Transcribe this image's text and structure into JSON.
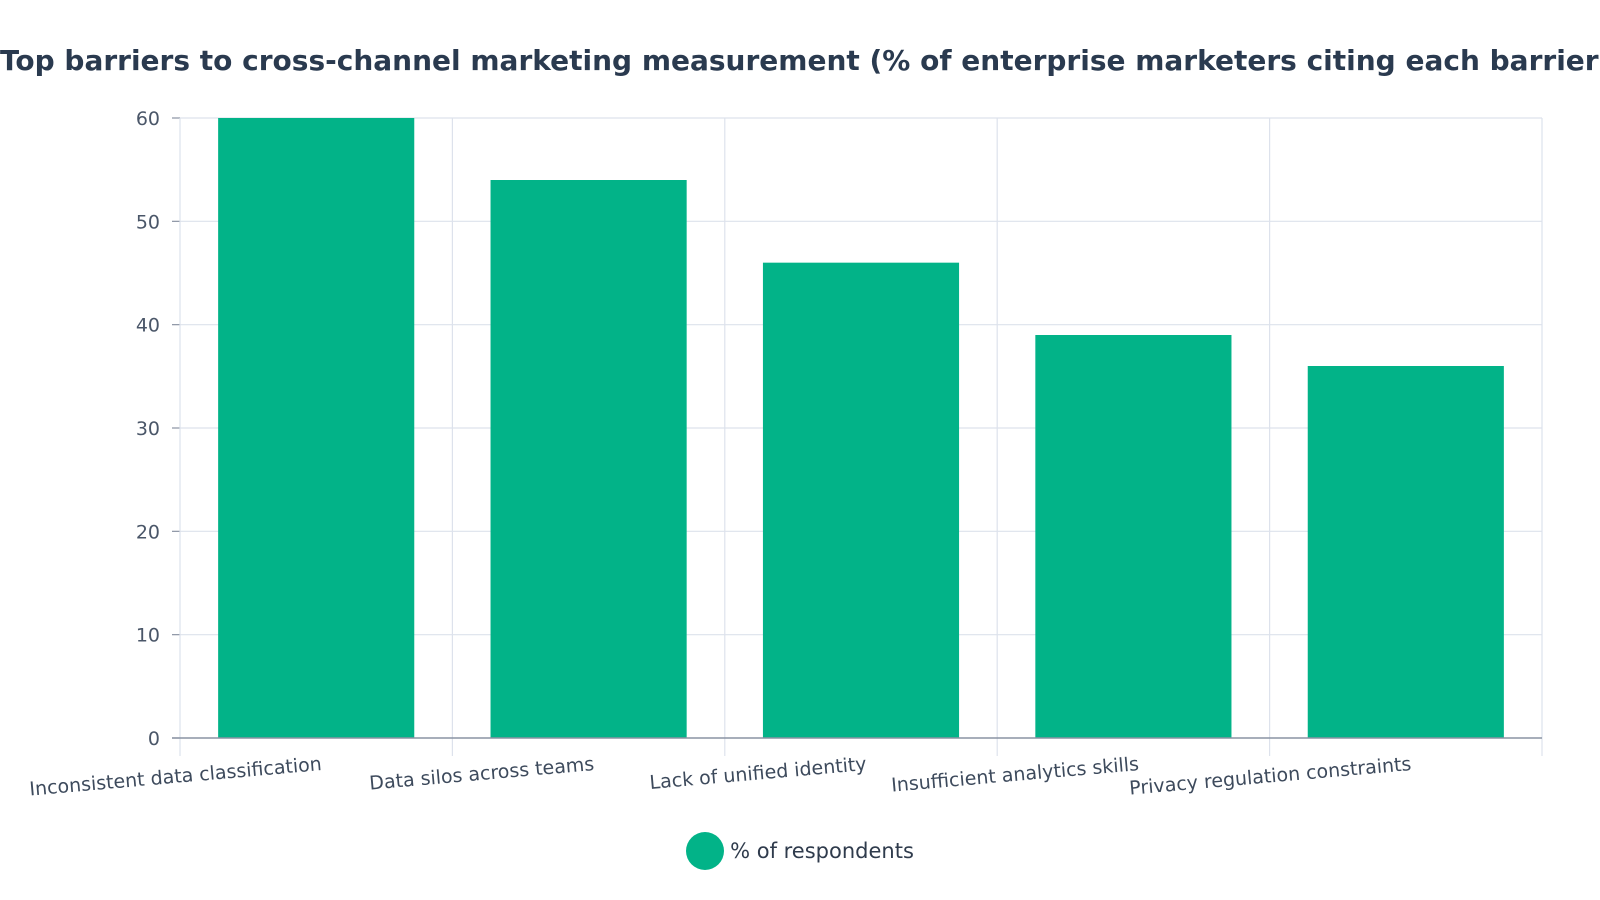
{
  "chart_data": {
    "type": "bar",
    "title": "Top barriers to cross-channel marketing measurement (% of enterprise marketers citing each barrier)",
    "xlabel": "",
    "ylabel": "",
    "categories": [
      "Inconsistent data classification",
      "Data silos across teams",
      "Lack of unified identity",
      "Insufficient analytics skills",
      "Privacy regulation constraints"
    ],
    "series": [
      {
        "name": "% of respondents",
        "values": [
          60,
          54,
          46,
          39,
          36
        ]
      }
    ],
    "ylim": [
      0,
      60
    ],
    "yticks": [
      "0",
      "10",
      "20",
      "30",
      "40",
      "50",
      "60"
    ],
    "grid": true,
    "legend": {
      "position": "bottom-center"
    },
    "colors": {
      "bar": "#02b388",
      "grid": "#dde2ec",
      "axis": "#8a93a3"
    }
  }
}
